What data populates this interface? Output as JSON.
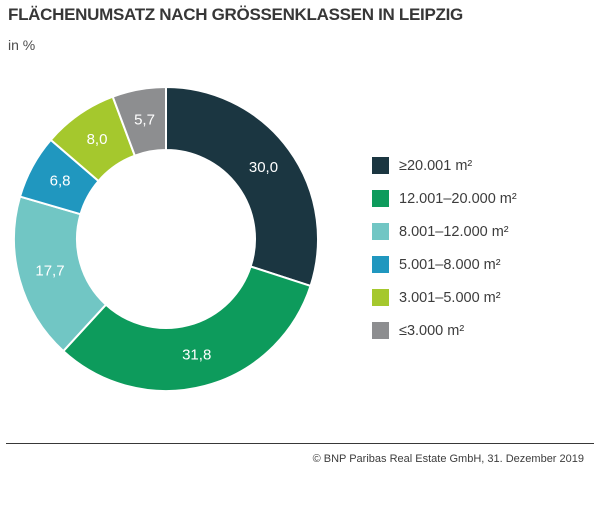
{
  "header": {
    "title": "FLÄCHENUMSATZ NACH GRÖSSENKLASSEN IN LEIPZIG",
    "subtitle": "in %"
  },
  "chart_data": {
    "type": "pie",
    "variant": "donut",
    "title": "FLÄCHENUMSATZ NACH GRÖSSENKLASSEN IN LEIPZIG",
    "unit": "%",
    "start_angle_deg": 0,
    "direction": "clockwise",
    "inner_radius_ratio": 0.585,
    "legend_position": "right",
    "label_color": "#ffffff",
    "divider_color": "#ffffff",
    "segments": [
      {
        "label": "≥20.001 m²",
        "value": 30.0,
        "display_value": "30,0",
        "color": "#1b3641"
      },
      {
        "label": "12.001–20.000 m²",
        "value": 31.8,
        "display_value": "31,8",
        "color": "#0d9b5c"
      },
      {
        "label": "8.001–12.000 m²",
        "value": 17.7,
        "display_value": "17,7",
        "color": "#71c6c4"
      },
      {
        "label": "5.001–8.000 m²",
        "value": 6.8,
        "display_value": "6,8",
        "color": "#2097bf"
      },
      {
        "label": "3.001–5.000 m²",
        "value": 8.0,
        "display_value": "8,0",
        "color": "#a5c82d"
      },
      {
        "label": "≤3.000 m²",
        "value": 5.7,
        "display_value": "5,7",
        "color": "#8d8e90"
      }
    ]
  },
  "footer": {
    "credit": "© BNP Paribas Real Estate GmbH, 31. Dezember 2019"
  }
}
